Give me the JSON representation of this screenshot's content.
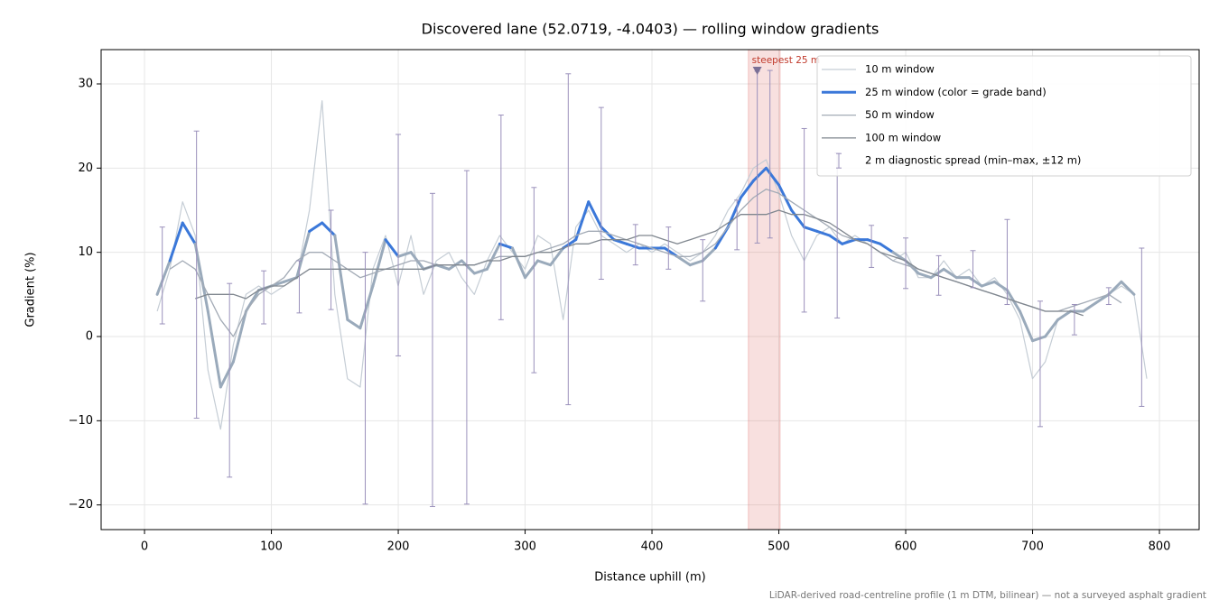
{
  "chart_data": {
    "type": "line",
    "title": "Discovered lane (52.0719, -4.0403) — rolling window gradients",
    "x_label": "Distance uphill (m)",
    "y_label": "Gradient (%)",
    "footnote": "LiDAR-derived road-centreline profile (1 m DTM, bilinear) — not a surveyed asphalt gradient",
    "xlim": [
      -34.2,
      831.3
    ],
    "ylim": [
      -22.93,
      34.07
    ],
    "xticks": [
      0,
      100,
      200,
      300,
      400,
      500,
      600,
      700,
      800
    ],
    "yticks": [
      {
        "value": -20,
        "label": "−20"
      },
      {
        "value": -10,
        "label": "−10"
      },
      0,
      10,
      20,
      30
    ],
    "grid": true,
    "legend": "upper right",
    "x": [
      10,
      20,
      30,
      40,
      50,
      60,
      70,
      80,
      90,
      100,
      110,
      120,
      130,
      140,
      150,
      160,
      170,
      180,
      190,
      200,
      210,
      220,
      230,
      240,
      250,
      260,
      270,
      280,
      290,
      300,
      310,
      320,
      330,
      340,
      350,
      360,
      370,
      380,
      390,
      400,
      410,
      420,
      430,
      440,
      450,
      460,
      470,
      480,
      490,
      500,
      510,
      520,
      530,
      540,
      550,
      560,
      570,
      580,
      590,
      600,
      610,
      620,
      630,
      640,
      650,
      660,
      670,
      680,
      690,
      700,
      710,
      720,
      730,
      740,
      750,
      760,
      770,
      780,
      790
    ],
    "series": [
      {
        "name": "10 m window",
        "color": "#c5cdd5",
        "width": 1.2,
        "values": [
          3,
          8,
          16,
          12,
          -4,
          -11,
          -1,
          5,
          6,
          5,
          6,
          7,
          15,
          28,
          5,
          -5,
          -6,
          8,
          12,
          6,
          12,
          5,
          9,
          10,
          7,
          5,
          9,
          12,
          10,
          8,
          12,
          11,
          2,
          13,
          15,
          12,
          11,
          10,
          11,
          10,
          11,
          10,
          9,
          10,
          12,
          15,
          17,
          20,
          21,
          17,
          12,
          9,
          12,
          13,
          11,
          12,
          11,
          10,
          9,
          10,
          7,
          7,
          9,
          7,
          8,
          6,
          7,
          5,
          2,
          -5,
          -3,
          2,
          3,
          3,
          4,
          5,
          6,
          5,
          -5
        ]
      },
      {
        "name": "25 m window (color = grade band)",
        "color": "#3b78d9",
        "width": 3,
        "grade_bands": [
          {
            "from": -100,
            "color": "#9aaabb"
          },
          {
            "from": 10,
            "color": "#3b78d9"
          },
          {
            "from": 20,
            "color": "#e8a23a"
          }
        ],
        "values": [
          5,
          9,
          13.5,
          11,
          3,
          -6,
          -3,
          3,
          5.5,
          6,
          6.5,
          7,
          12.5,
          13.5,
          12,
          2,
          1,
          6,
          11.5,
          9.5,
          10,
          8,
          8.5,
          8,
          9,
          7.5,
          8,
          11,
          10.5,
          7,
          9,
          8.5,
          10.5,
          11.5,
          16,
          13,
          11.5,
          11,
          10.5,
          10.5,
          10.5,
          9.5,
          8.5,
          9,
          10.5,
          13,
          16.5,
          18.5,
          20,
          18,
          15,
          13,
          12.5,
          12,
          11,
          11.5,
          11.5,
          11,
          10,
          9,
          7.5,
          7,
          8,
          7,
          7,
          6,
          6.5,
          5.5,
          3,
          -0.5,
          0,
          2,
          3,
          3,
          4,
          5,
          6.5,
          5,
          null
        ]
      },
      {
        "name": "50 m window",
        "color": "#a3abb6",
        "width": 1.3,
        "values": [
          null,
          8,
          9,
          8,
          5,
          2,
          0,
          3,
          5,
          6,
          7,
          9,
          10,
          10,
          9,
          8,
          7,
          7.5,
          8,
          8.5,
          9,
          9,
          8.5,
          8.5,
          8.5,
          8.5,
          9,
          9.5,
          9.5,
          9.5,
          10,
          10.5,
          11,
          12,
          12.5,
          12.5,
          12,
          11.5,
          11,
          10.5,
          10,
          9.5,
          9.5,
          10,
          11,
          13,
          15,
          16.5,
          17.5,
          17,
          16,
          15,
          14,
          13,
          12,
          11.5,
          11,
          10,
          9,
          8.5,
          8,
          7.5,
          7,
          6.5,
          6,
          5.5,
          5,
          4.5,
          4,
          3.5,
          3,
          3,
          3.5,
          4,
          4.5,
          5,
          4,
          null,
          null
        ]
      },
      {
        "name": "100 m window",
        "color": "#80878f",
        "width": 1.3,
        "values": [
          null,
          null,
          null,
          4.5,
          5,
          5,
          5,
          4.5,
          5.5,
          6,
          6,
          7,
          8,
          8,
          8,
          8,
          8,
          8,
          8,
          8,
          8,
          8,
          8.5,
          8.5,
          8.5,
          8.5,
          9,
          9,
          9.5,
          9.5,
          10,
          10,
          10.5,
          11,
          11,
          11.5,
          11.5,
          11.5,
          12,
          12,
          11.5,
          11,
          11.5,
          12,
          12.5,
          13.5,
          14.5,
          14.5,
          14.5,
          15,
          14.5,
          14.5,
          14,
          13.5,
          12.5,
          11.5,
          11,
          10,
          9.5,
          9,
          8,
          7.5,
          7,
          6.5,
          6,
          5.5,
          5,
          4.5,
          4,
          3.5,
          3,
          3,
          3,
          2.5,
          null,
          null,
          null,
          null,
          null
        ]
      }
    ],
    "error_bars": {
      "name": "2 m diagnostic spread (min–max, ±12 m)",
      "color": "#9a90bb",
      "x": [
        14,
        41,
        67,
        94,
        122,
        147,
        174,
        200,
        227,
        254,
        281,
        307,
        334,
        360,
        387,
        413,
        440,
        467,
        483,
        493,
        520,
        546,
        573,
        600,
        626,
        653,
        680,
        706,
        733,
        760,
        786
      ],
      "low": [
        1.5,
        -9.7,
        -16.7,
        1.5,
        2.8,
        3.2,
        -19.9,
        -2.3,
        -20.2,
        -19.9,
        2,
        -4.3,
        -8.1,
        6.8,
        8.5,
        8,
        4.2,
        10.3,
        11.1,
        11.7,
        2.9,
        2.2,
        8.2,
        5.7,
        4.9,
        5.8,
        3.8,
        -10.7,
        0.2,
        3.8,
        -8.3
      ],
      "high": [
        13,
        24.4,
        6.3,
        7.8,
        9,
        15,
        10,
        24,
        17,
        19.7,
        26.3,
        17.7,
        31.2,
        27.2,
        13.3,
        13,
        11.5,
        16.2,
        31.5,
        31.6,
        24.7,
        21.8,
        13.2,
        11.7,
        9.6,
        10.2,
        13.9,
        4.2,
        3.8,
        5.8,
        10.5
      ]
    },
    "highlight": {
      "label": "steepest 25 m",
      "xlim": [
        476,
        501
      ],
      "color": "#d9534f",
      "marker": {
        "x": 483,
        "y": 31.5,
        "color": "#7a6f96"
      }
    }
  }
}
